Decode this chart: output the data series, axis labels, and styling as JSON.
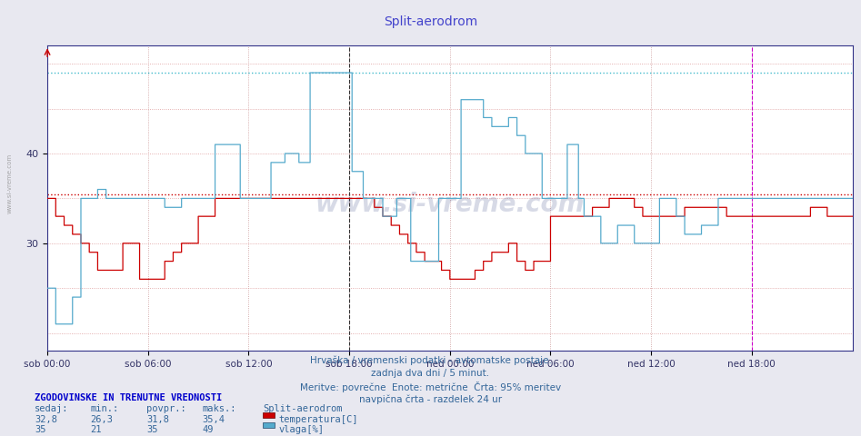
{
  "title": "Split-aerodrom",
  "title_color": "#4444cc",
  "bg_color": "#e8e8f0",
  "plot_bg_color": "#ffffff",
  "xlabel_ticks": [
    "sob 00:00",
    "sob 06:00",
    "sob 12:00",
    "sob 18:00",
    "ned 00:00",
    "ned 06:00",
    "ned 12:00",
    "ned 18:00"
  ],
  "ytick_labels": [
    "30",
    "40"
  ],
  "ytick_vals": [
    30,
    40
  ],
  "ylim": [
    18,
    52
  ],
  "xlim": [
    0,
    576
  ],
  "temp_color": "#cc0000",
  "vlaga_color": "#55aacc",
  "temp_avg": 35.4,
  "vlaga_avg": 49.0,
  "temp_avg_color": "#cc0000",
  "vlaga_avg_color": "#44bbcc",
  "vline_color": "#555555",
  "vline_right_color": "#cc00cc",
  "hgrid_color": "#dd9999",
  "vgrid_color": "#cc9999",
  "footer_line1": "Hrvaška / vremenski podatki - avtomatske postaje.",
  "footer_line2": "zadnja dva dni / 5 minut.",
  "footer_line3": "Meritve: povrečne  Enote: metrične  Črta: 95% meritev",
  "footer_line4": "navpična črta - razdelek 24 ur",
  "legend_title": "ZGODOVINSKE IN TRENUTNE VREDNOSTI",
  "col_headers": [
    "sedaj:",
    "min.:",
    "povpr.:",
    "maks.:",
    "Split-aerodrom"
  ],
  "temp_row": [
    "32,8",
    "26,3",
    "31,8",
    "35,4"
  ],
  "vlaga_row": [
    "35",
    "21",
    "35",
    "49"
  ],
  "temp_label": "temperatura[C]",
  "vlaga_label": "vlaga[%]",
  "watermark": "www.si-vreme.com",
  "side_watermark": "www.si-vreme.com",
  "tick_positions": [
    0,
    72,
    144,
    216,
    288,
    360,
    432,
    504
  ],
  "N": 577
}
